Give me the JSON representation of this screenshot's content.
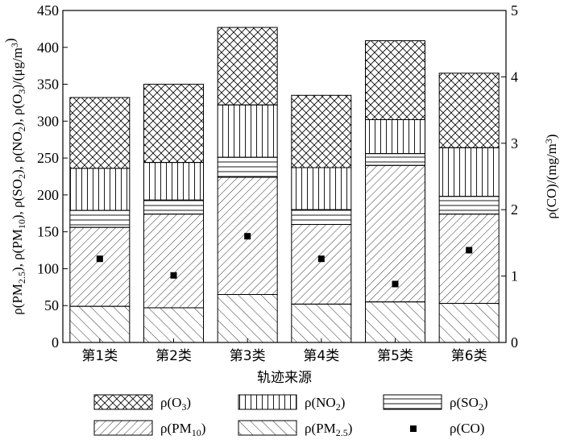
{
  "chart_data": {
    "type": "bar",
    "stacked": true,
    "categories": [
      "第1类",
      "第2类",
      "第3类",
      "第4类",
      "第5类",
      "第6类"
    ],
    "xlabel": "轨迹来源",
    "ylabel_left_parts": [
      "ρ(PM",
      "2.5",
      "), ρ(PM",
      "10",
      "), ρ(SO",
      "2",
      "), ρ(NO",
      "2",
      "), ρ(O",
      "3",
      ")/(μg/m",
      "3",
      ")"
    ],
    "ylabel_right_parts": [
      "ρ(CO)/(mg/m",
      "3",
      ")"
    ],
    "ylim_left": [
      0,
      450
    ],
    "yticks_left": [
      "0",
      "50",
      "100",
      "150",
      "200",
      "250",
      "300",
      "350",
      "400",
      "450"
    ],
    "ylim_right": [
      0,
      5
    ],
    "yticks_right": [
      "0",
      "1",
      "2",
      "3",
      "4",
      "5"
    ],
    "series": [
      {
        "name_parts": [
          "ρ(PM",
          "2.5",
          ")"
        ],
        "pattern": "diag-sparse",
        "values": [
          49,
          47,
          65,
          52,
          55,
          53
        ]
      },
      {
        "name_parts": [
          "ρ(PM",
          "10",
          ")"
        ],
        "pattern": "diag-dense",
        "values": [
          107,
          127,
          159,
          108,
          185,
          121
        ]
      },
      {
        "name_parts": [
          "ρ(SO",
          "2",
          ")"
        ],
        "pattern": "horizontal",
        "values": [
          23,
          19,
          27,
          20,
          16,
          24
        ]
      },
      {
        "name_parts": [
          "ρ(NO",
          "2",
          ")"
        ],
        "pattern": "vertical",
        "values": [
          57,
          51,
          71,
          57,
          46,
          66
        ]
      },
      {
        "name_parts": [
          "ρ(O",
          "3",
          ")"
        ],
        "pattern": "crosshatch",
        "values": [
          96,
          106,
          105,
          98,
          107,
          101
        ]
      }
    ],
    "points": {
      "name_parts": [
        "ρ(CO)"
      ],
      "axis": "right",
      "values": [
        1.26,
        1.01,
        1.6,
        1.26,
        0.88,
        1.39
      ]
    },
    "legend_position": "bottom"
  }
}
